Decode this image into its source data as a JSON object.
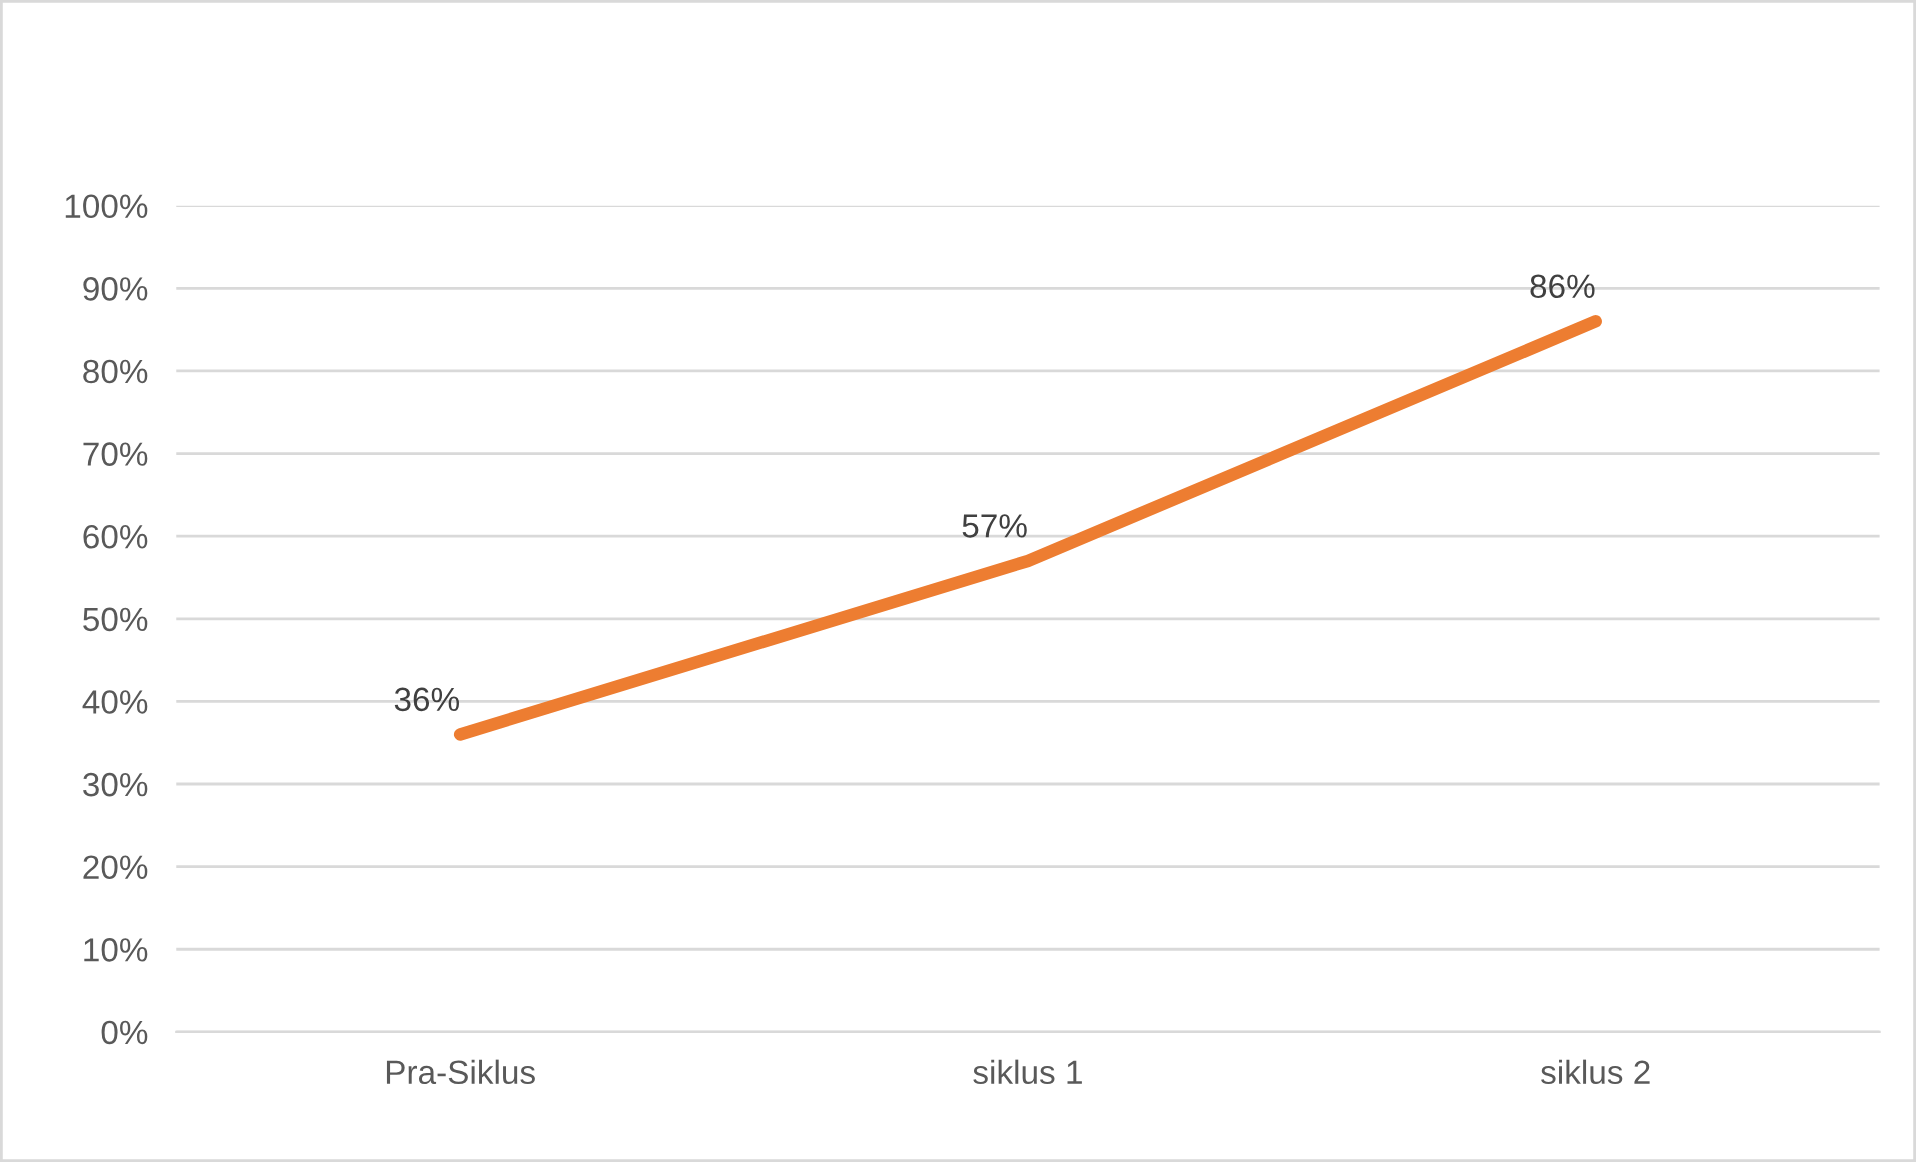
{
  "chart_data": {
    "type": "line",
    "categories": [
      "Pra-Siklus",
      "siklus 1",
      "siklus 2"
    ],
    "series": [
      {
        "color": "#ed7d31",
        "values": [
          36,
          57,
          86
        ],
        "value_labels": [
          "36%",
          "57%",
          "86%"
        ]
      }
    ],
    "ylim": [
      0,
      100
    ],
    "yticks": [
      {
        "value": 0,
        "label": "0%"
      },
      {
        "value": 10,
        "label": "10%"
      },
      {
        "value": 20,
        "label": "20%"
      },
      {
        "value": 30,
        "label": "30%"
      },
      {
        "value": 40,
        "label": "40%"
      },
      {
        "value": 50,
        "label": "50%"
      },
      {
        "value": 60,
        "label": "60%"
      },
      {
        "value": 70,
        "label": "70%"
      },
      {
        "value": 80,
        "label": "80%"
      },
      {
        "value": 90,
        "label": "90%"
      },
      {
        "value": 100,
        "label": "100%"
      }
    ],
    "grid": "y",
    "legend": false,
    "marker": "none",
    "line_style": "solid"
  }
}
